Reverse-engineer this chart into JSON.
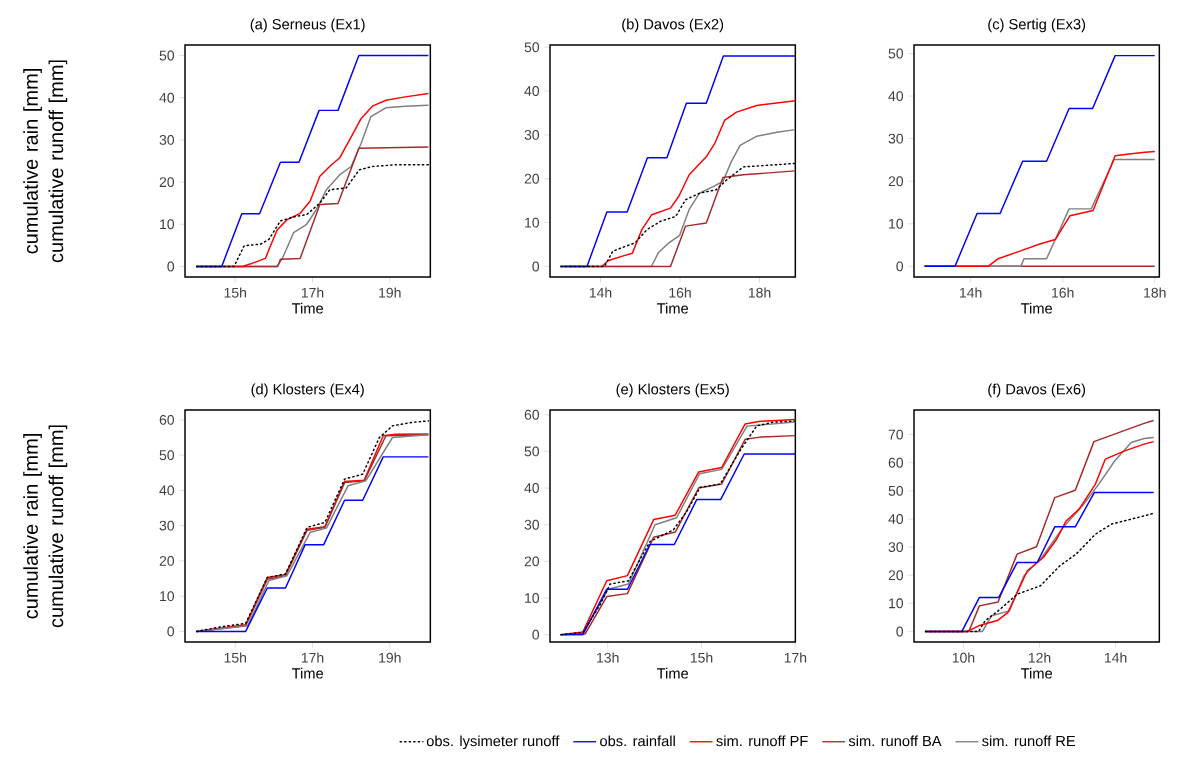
{
  "chart_data": [
    {
      "type": "line",
      "title": "(a) Serneus (Ex1)",
      "xlabel": "Time",
      "ylabel": "cumulative rain [mm] cumulative runoff [mm]",
      "xlim": [
        13.7,
        20.05
      ],
      "ylim": [
        -2.5,
        52.5
      ],
      "xticks": [
        {
          "value": 15,
          "label": "15h"
        },
        {
          "value": 17,
          "label": "17h"
        },
        {
          "value": 19,
          "label": "19h"
        }
      ],
      "yticks": [
        0,
        10,
        20,
        30,
        40,
        50
      ],
      "series": [
        {
          "color": "#000000",
          "line_style": "dotted",
          "x": [
            14,
            14.97,
            15.23,
            15.66,
            15.87,
            16.17,
            16.59,
            16.85,
            17.19,
            17.45,
            17.87,
            18.21,
            18.55,
            19.15,
            20
          ],
          "values": [
            0,
            0,
            4.9,
            5.3,
            6.4,
            10.8,
            11.9,
            12.3,
            15,
            18.2,
            18.6,
            22.9,
            23.7,
            24.1,
            24.1
          ]
        },
        {
          "color": "#0000ff",
          "line_style": "solid",
          "x": [
            14,
            14.65,
            15.17,
            15.63,
            16.17,
            16.65,
            17.17,
            17.66,
            18.2,
            20
          ],
          "values": [
            0,
            0,
            12.5,
            12.5,
            24.7,
            24.7,
            37,
            37,
            50,
            50
          ]
        },
        {
          "color": "#ff0000",
          "line_style": "solid",
          "x": [
            14,
            15.19,
            15.49,
            15.78,
            16.08,
            16.34,
            16.68,
            16.94,
            17.19,
            17.49,
            17.7,
            17.96,
            18.26,
            18.55,
            18.9,
            19.4,
            20
          ],
          "values": [
            0,
            0,
            0.9,
            1.9,
            8.6,
            11.1,
            12.6,
            15.5,
            21.4,
            24.1,
            25.7,
            30,
            35.1,
            38,
            39.4,
            40.2,
            41
          ]
        },
        {
          "color": "#a52a2a",
          "line_style": "solid",
          "x": [
            14,
            16.1,
            16.17,
            16.68,
            17.19,
            17.66,
            18.2,
            20
          ],
          "values": [
            0,
            0,
            1.7,
            1.9,
            14.7,
            14.9,
            28,
            28.3
          ]
        },
        {
          "color": "#7f7f7f",
          "line_style": "solid",
          "x": [
            14,
            16.08,
            16.21,
            16.51,
            16.85,
            17.1,
            17.36,
            17.7,
            18,
            18.26,
            18.51,
            18.9,
            19.4,
            20
          ],
          "values": [
            0,
            0,
            1.7,
            8,
            10,
            13.5,
            18.2,
            21.7,
            23.7,
            29.2,
            35.5,
            37.6,
            38,
            38.2
          ]
        }
      ]
    },
    {
      "type": "line",
      "title": "(b) Davos (Ex2)",
      "xlabel": "Time",
      "xlim": [
        12.73,
        18.9
      ],
      "ylim": [
        -2.4,
        50.5
      ],
      "xticks": [
        {
          "value": 14,
          "label": "14h"
        },
        {
          "value": 16,
          "label": "16h"
        },
        {
          "value": 18,
          "label": "18h"
        }
      ],
      "yticks": [
        0,
        10,
        20,
        30,
        40,
        50
      ],
      "series": [
        {
          "color": "#000000",
          "line_style": "dotted",
          "x": [
            13,
            14.1,
            14.31,
            14.87,
            15.17,
            15.51,
            15.89,
            16.14,
            16.49,
            16.91,
            17.17,
            17.59,
            18.9
          ],
          "values": [
            0,
            0,
            3.5,
            5.4,
            8.4,
            10.3,
            11.4,
            15.2,
            16.7,
            17.5,
            19.7,
            22.7,
            23.5
          ]
        },
        {
          "color": "#0000ff",
          "line_style": "solid",
          "x": [
            13,
            13.66,
            14.16,
            14.67,
            15.18,
            15.67,
            16.16,
            16.66,
            17.09,
            18.9
          ],
          "values": [
            0,
            0,
            12.4,
            12.4,
            24.8,
            24.8,
            37.2,
            37.2,
            48,
            48
          ]
        },
        {
          "color": "#ff0000",
          "line_style": "solid",
          "x": [
            13,
            14.03,
            14.19,
            14.53,
            14.8,
            15.04,
            15.29,
            15.76,
            15.97,
            16.23,
            16.66,
            16.87,
            17.12,
            17.42,
            17.93,
            18.9
          ],
          "values": [
            0,
            0,
            1.3,
            2.3,
            3,
            8.4,
            11.8,
            13.3,
            16,
            20.9,
            25,
            28,
            33.3,
            35.2,
            36.7,
            37.8
          ]
        },
        {
          "color": "#a52a2a",
          "line_style": "solid",
          "x": [
            13,
            15.76,
            16.14,
            16.66,
            17.08,
            17.59,
            18.9
          ],
          "values": [
            0,
            0,
            9.2,
            9.9,
            20.3,
            20.9,
            21.8
          ]
        },
        {
          "color": "#7f7f7f",
          "line_style": "solid",
          "x": [
            13,
            15.28,
            15.46,
            15.72,
            15.99,
            16.23,
            16.49,
            16.83,
            17.08,
            17.29,
            17.51,
            17.93,
            18.44,
            18.9
          ],
          "values": [
            0,
            0,
            3.2,
            5.4,
            7.1,
            13,
            16.7,
            18.2,
            19.4,
            23.9,
            27.6,
            29.7,
            30.6,
            31.2
          ]
        }
      ]
    },
    {
      "type": "line",
      "title": "(c) Sertig (Ex3)",
      "xlabel": "Time",
      "xlim": [
        12.77,
        18.1
      ],
      "ylim": [
        -2.5,
        52
      ],
      "xticks": [
        {
          "value": 14,
          "label": "14h"
        },
        {
          "value": 16,
          "label": "16h"
        },
        {
          "value": 18,
          "label": "18h"
        }
      ],
      "yticks": [
        0,
        10,
        20,
        30,
        40,
        50
      ],
      "series": [
        {
          "color": "#0000ff",
          "line_style": "solid",
          "x": [
            13,
            13.66,
            14.14,
            14.64,
            15.13,
            15.65,
            16.14,
            16.65,
            17.14,
            18
          ],
          "values": [
            0,
            0,
            12.4,
            12.4,
            24.7,
            24.7,
            37.1,
            37.1,
            49.5,
            49.5
          ]
        },
        {
          "color": "#ff0000",
          "line_style": "solid",
          "x": [
            13,
            14.38,
            14.6,
            15.1,
            15.52,
            15.84,
            16.16,
            16.66,
            17.14,
            17.44,
            17.79,
            18
          ],
          "values": [
            0,
            0,
            1.8,
            3.7,
            5.3,
            6.3,
            11.9,
            13.1,
            26,
            26.4,
            26.8,
            27
          ]
        },
        {
          "color": "#7f7f7f",
          "line_style": "solid",
          "x": [
            13,
            15.09,
            15.16,
            15.65,
            16.14,
            16.62,
            17.12,
            18
          ],
          "values": [
            0,
            0,
            1.8,
            1.8,
            13.5,
            13.5,
            25.1,
            25.1
          ]
        },
        {
          "color": "#a52a2a",
          "line_style": "solid",
          "x": [
            13,
            18
          ],
          "values": [
            0,
            0
          ]
        }
      ]
    },
    {
      "type": "line",
      "title": "(d) Klosters (Ex4)",
      "xlabel": "Time",
      "ylabel": "cumulative rain [mm] cumulative runoff [mm]",
      "xlim": [
        13.7,
        20.05
      ],
      "ylim": [
        -3,
        62.8
      ],
      "xticks": [
        {
          "value": 15,
          "label": "15h"
        },
        {
          "value": 17,
          "label": "17h"
        },
        {
          "value": 19,
          "label": "19h"
        }
      ],
      "yticks": [
        0,
        10,
        20,
        30,
        40,
        50,
        60
      ],
      "series": [
        {
          "color": "#000000",
          "line_style": "dotted",
          "x": [
            14,
            14.63,
            15.27,
            15.83,
            16.3,
            16.86,
            17.02,
            17.32,
            17.83,
            18.3,
            18.73,
            19.07,
            19.58,
            20
          ],
          "values": [
            0,
            1.3,
            2.3,
            15.3,
            16.3,
            29.5,
            30,
            30.9,
            43.2,
            44.6,
            55,
            58.3,
            59.3,
            59.7
          ]
        },
        {
          "color": "#0000ff",
          "line_style": "solid",
          "x": [
            14,
            15.27,
            15.83,
            16.3,
            16.81,
            17.29,
            17.83,
            18.3,
            18.83,
            20
          ],
          "values": [
            0,
            0,
            12.3,
            12.3,
            24.6,
            24.6,
            37.2,
            37.2,
            49.5,
            49.5
          ]
        },
        {
          "color": "#7f7f7f",
          "line_style": "solid",
          "x": [
            14,
            15.32,
            15.87,
            16.34,
            16.94,
            17.36,
            17.92,
            18.38,
            19.07,
            20
          ],
          "values": [
            0,
            1.6,
            14.4,
            15.8,
            28.1,
            29.3,
            41.3,
            42.7,
            55,
            55.8
          ]
        },
        {
          "color": "#a52a2a",
          "line_style": "solid",
          "x": [
            14,
            15.27,
            15.83,
            16.3,
            16.86,
            17.32,
            17.83,
            18.34,
            18.9,
            20
          ],
          "values": [
            0,
            1.6,
            14.8,
            15.8,
            28.7,
            29.5,
            42.2,
            42.7,
            55.5,
            55.8
          ]
        },
        {
          "color": "#ff0000",
          "line_style": "solid",
          "x": [
            14,
            15.27,
            15.83,
            16.3,
            16.86,
            17.32,
            17.83,
            18.34,
            18.83,
            19.15,
            20
          ],
          "values": [
            0,
            1.9,
            15.3,
            16.1,
            29,
            29.7,
            42.5,
            42.9,
            55.5,
            55.9,
            56
          ]
        }
      ]
    },
    {
      "type": "line",
      "title": "(e) Klosters (Ex5)",
      "xlabel": "Time",
      "legend": "bottom",
      "xlim": [
        11.77,
        17.0
      ],
      "ylim": [
        -2,
        61.3
      ],
      "xticks": [
        {
          "value": 13,
          "label": "13h"
        },
        {
          "value": 15,
          "label": "15h"
        },
        {
          "value": 17,
          "label": "17h"
        }
      ],
      "yticks": [
        0,
        10,
        20,
        30,
        40,
        50,
        60
      ],
      "series": [
        {
          "name": "obs. lysimeter runoff",
          "color": "#000000",
          "line_style": "dotted",
          "x": [
            12,
            12.47,
            12.84,
            13.05,
            13.44,
            13.9,
            14.4,
            14.69,
            14.97,
            15.4,
            15.83,
            16.18,
            16.54,
            17
          ],
          "values": [
            0,
            0.6,
            8.2,
            13.8,
            14.7,
            25.4,
            28.6,
            33.7,
            40.2,
            41.1,
            50.4,
            57,
            58,
            58.3
          ]
        },
        {
          "name": "obs. rainfall",
          "color": "#0000ff",
          "line_style": "solid",
          "x": [
            12,
            12.47,
            12.98,
            13.42,
            13.9,
            14.42,
            14.9,
            15.41,
            15.91,
            17
          ],
          "values": [
            0,
            0,
            12.4,
            12.4,
            24.6,
            24.6,
            36.9,
            36.9,
            49.3,
            49.3
          ]
        },
        {
          "name": "sim. runoff PF",
          "color": "#ff0000",
          "line_style": "solid",
          "x": [
            12,
            12.47,
            12.98,
            13.42,
            13.98,
            14.44,
            14.94,
            15.43,
            15.93,
            16.25,
            17
          ],
          "values": [
            0,
            0.7,
            14.7,
            16.1,
            31.4,
            32.6,
            44.4,
            45.6,
            57.5,
            58.2,
            58.7
          ]
        },
        {
          "name": "sim. runoff BA",
          "color": "#a52a2a",
          "line_style": "solid",
          "x": [
            12,
            12.52,
            12.98,
            13.42,
            13.98,
            14.44,
            14.94,
            15.43,
            15.93,
            16.25,
            17
          ],
          "values": [
            0,
            0.2,
            10.4,
            11.2,
            26.6,
            28,
            40,
            41.1,
            53.3,
            53.9,
            54.3
          ]
        },
        {
          "name": "sim. runoff RE",
          "color": "#7f7f7f",
          "line_style": "solid",
          "x": [
            12,
            12.47,
            13.01,
            13.44,
            14.01,
            14.47,
            14.96,
            15.43,
            15.97,
            17
          ],
          "values": [
            0,
            0.4,
            12.4,
            13.8,
            30,
            31.9,
            43.9,
            45.1,
            56.9,
            58
          ]
        }
      ]
    },
    {
      "type": "line",
      "title": "(f) Davos (Ex6)",
      "xlabel": "Time",
      "xlim": [
        8.7,
        15.15
      ],
      "ylim": [
        -3.75,
        78.75
      ],
      "xticks": [
        {
          "value": 10,
          "label": "10h"
        },
        {
          "value": 12,
          "label": "12h"
        },
        {
          "value": 14,
          "label": "14h"
        }
      ],
      "yticks": [
        0,
        10,
        20,
        30,
        40,
        50,
        60,
        70
      ],
      "series": [
        {
          "color": "#000000",
          "line_style": "dotted",
          "x": [
            9,
            10.4,
            10.57,
            10.91,
            11.42,
            12.02,
            12.53,
            12.96,
            13.47,
            13.9,
            14.75,
            15
          ],
          "values": [
            0,
            0,
            3.8,
            7.3,
            13.3,
            16.2,
            23.3,
            27.5,
            34.6,
            38.2,
            41.1,
            42
          ]
        },
        {
          "color": "#0000ff",
          "line_style": "solid",
          "x": [
            9,
            9.96,
            10.42,
            10.93,
            11.41,
            11.94,
            12.4,
            12.94,
            13.44,
            15
          ],
          "values": [
            0,
            0,
            12.1,
            12.1,
            24.5,
            24.5,
            37.2,
            37.2,
            49.4,
            49.4
          ]
        },
        {
          "color": "#ff0000",
          "line_style": "solid",
          "x": [
            9,
            10.1,
            10.4,
            10.91,
            11.17,
            11.68,
            12.1,
            12.45,
            12.7,
            13.04,
            13.47,
            13.73,
            14.24,
            14.75,
            15
          ],
          "values": [
            0,
            0,
            2,
            4,
            6.8,
            21.6,
            26.3,
            32.8,
            39.3,
            43.5,
            52.4,
            61.3,
            64.2,
            66.6,
            67.5
          ]
        },
        {
          "color": "#a52a2a",
          "line_style": "solid",
          "x": [
            9,
            10.14,
            10.42,
            10.91,
            11.41,
            11.92,
            12.4,
            12.94,
            13.43,
            14.75,
            15
          ],
          "values": [
            0,
            0,
            9.1,
            10.5,
            27.5,
            30.1,
            47.6,
            50.2,
            67.5,
            74,
            75
          ]
        },
        {
          "color": "#7f7f7f",
          "line_style": "solid",
          "x": [
            9,
            10.5,
            10.74,
            11.21,
            11.59,
            12.06,
            12.62,
            13.13,
            13.56,
            13.98,
            14.41,
            14.75,
            15
          ],
          "values": [
            0,
            0,
            5.6,
            7.3,
            19.8,
            26.3,
            37,
            44.7,
            52.4,
            60.7,
            67.2,
            68.6,
            69
          ]
        }
      ]
    }
  ]
}
